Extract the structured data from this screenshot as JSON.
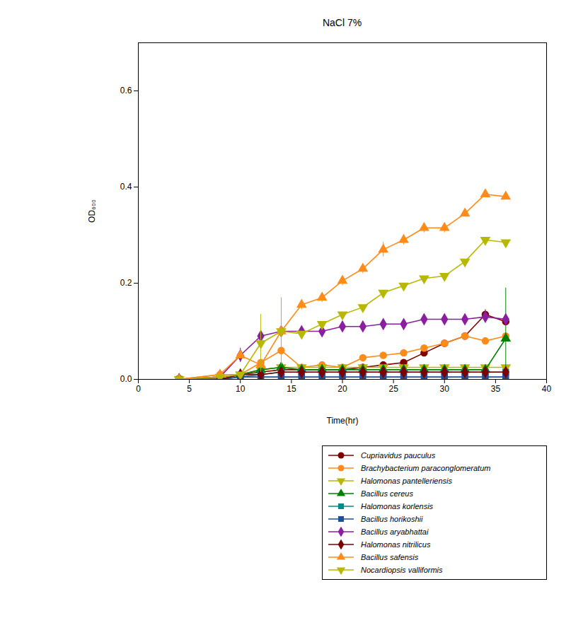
{
  "chart_data": {
    "type": "line",
    "title": "NaCl 7%",
    "x_label": "Time(hr)",
    "y_label": "OD₆₀₀",
    "xlim": [
      0,
      40
    ],
    "xticks": [
      0,
      5,
      10,
      15,
      20,
      25,
      30,
      35,
      40
    ],
    "ylim": [
      0,
      0.7
    ],
    "yticks": [
      {
        "value": 0,
        "label": "0.0"
      },
      0.2,
      0.4,
      0.6
    ],
    "grid": false,
    "legend": "bottom right",
    "x": [
      4,
      8,
      10,
      12,
      14,
      16,
      18,
      20,
      22,
      24,
      26,
      28,
      30,
      32,
      34,
      36
    ],
    "series": [
      {
        "name": "Cupriavidus pauculus",
        "color": "#800000",
        "marker": "circle",
        "values": [
          0,
          0.005,
          0.01,
          0.015,
          0.02,
          0.02,
          0.02,
          0.02,
          0.025,
          0.03,
          0.035,
          0.055,
          0.075,
          0.09,
          0.135,
          0.12
        ],
        "errors": [
          null,
          null,
          null,
          null,
          null,
          null,
          null,
          null,
          null,
          null,
          null,
          null,
          null,
          null,
          0.01,
          null
        ]
      },
      {
        "name": "Brachybacterium paraconglomeratum",
        "color": "#ff8c1a",
        "marker": "circle",
        "values": [
          0,
          0.01,
          0.01,
          0.035,
          0.06,
          0.025,
          0.03,
          0.025,
          0.045,
          0.05,
          0.055,
          0.065,
          0.075,
          0.09,
          0.08,
          0.09
        ],
        "errors": [
          null,
          null,
          null,
          null,
          null,
          null,
          null,
          null,
          null,
          null,
          null,
          null,
          null,
          null,
          null,
          null
        ]
      },
      {
        "name": "Halomonas pantelleriensis",
        "color": "#b8b800",
        "marker": "triangle-down",
        "values": [
          0,
          0,
          0.01,
          0.02,
          0.025,
          0.025,
          0.025,
          0.025,
          0.025,
          0.025,
          0.025,
          0.025,
          0.025,
          0.025,
          0.025,
          0.025
        ],
        "errors": [
          null,
          null,
          null,
          null,
          null,
          null,
          null,
          null,
          null,
          null,
          null,
          null,
          null,
          null,
          null,
          null
        ]
      },
      {
        "name": "Bacillus cereus",
        "color": "#008000",
        "marker": "triangle",
        "values": [
          0,
          0,
          0.01,
          0.02,
          0.025,
          0.02,
          0.02,
          0.02,
          0.02,
          0.02,
          0.02,
          0.02,
          0.02,
          0.02,
          0.02,
          0.085
        ],
        "errors": [
          null,
          null,
          null,
          null,
          null,
          null,
          null,
          null,
          null,
          null,
          null,
          null,
          null,
          null,
          null,
          0.105
        ]
      },
      {
        "name": "Halomonas korlensis",
        "color": "#008b8b",
        "marker": "square",
        "values": [
          0,
          0,
          0.005,
          0.01,
          0.015,
          0.015,
          0.015,
          0.015,
          0.015,
          0.015,
          0.015,
          0.015,
          0.015,
          0.015,
          0.015,
          0.015
        ],
        "errors": [
          null,
          null,
          null,
          null,
          null,
          null,
          null,
          null,
          null,
          null,
          null,
          null,
          null,
          null,
          null,
          null
        ]
      },
      {
        "name": "Bacillus horikoshii",
        "color": "#1f4e9b",
        "marker": "square",
        "values": [
          0,
          0,
          0.005,
          0.005,
          0.005,
          0.005,
          0.005,
          0.005,
          0.005,
          0.005,
          0.005,
          0.005,
          0.005,
          0.005,
          0.005,
          0.005
        ],
        "errors": [
          null,
          null,
          null,
          null,
          null,
          null,
          null,
          null,
          null,
          null,
          null,
          null,
          null,
          null,
          null,
          null
        ]
      },
      {
        "name": "Bacillus aryabhattai",
        "color": "#8b1fa0",
        "marker": "diamond",
        "values": [
          0,
          0.005,
          0.05,
          0.09,
          0.1,
          0.1,
          0.1,
          0.11,
          0.11,
          0.115,
          0.115,
          0.125,
          0.125,
          0.125,
          0.13,
          0.125
        ],
        "errors": [
          null,
          null,
          0.015,
          null,
          null,
          null,
          null,
          null,
          null,
          null,
          null,
          null,
          null,
          null,
          null,
          null
        ]
      },
      {
        "name": "Halomonas nitrilicus",
        "color": "#7b0000",
        "marker": "diamond",
        "values": [
          0,
          0,
          0.01,
          0.01,
          0.015,
          0.015,
          0.015,
          0.015,
          0.015,
          0.015,
          0.015,
          0.015,
          0.015,
          0.015,
          0.015,
          0.015
        ],
        "errors": [
          null,
          null,
          null,
          null,
          null,
          null,
          null,
          null,
          null,
          null,
          null,
          null,
          null,
          null,
          null,
          null
        ]
      },
      {
        "name": "Bacillus safensis",
        "color": "#ff8c1a",
        "marker": "triangle",
        "values": [
          0,
          0.01,
          0.05,
          0.03,
          0.1,
          0.155,
          0.17,
          0.205,
          0.23,
          0.27,
          0.29,
          0.315,
          0.315,
          0.345,
          0.385,
          0.38
        ],
        "errors": [
          null,
          null,
          null,
          null,
          null,
          0.01,
          0.01,
          0.01,
          0.01,
          0.015,
          0.01,
          0.01,
          0.01,
          null,
          null,
          null
        ]
      },
      {
        "name": "Nocardiopsis valliformis",
        "color": "#b8b800",
        "marker": "triangle-down",
        "values": [
          0,
          0.005,
          0.01,
          0.075,
          0.1,
          0.095,
          0.115,
          0.135,
          0.15,
          0.18,
          0.195,
          0.21,
          0.215,
          0.245,
          0.29,
          0.285
        ],
        "errors": [
          null,
          null,
          null,
          0.06,
          0.07,
          null,
          null,
          null,
          null,
          null,
          null,
          null,
          null,
          null,
          null,
          null
        ]
      }
    ]
  }
}
